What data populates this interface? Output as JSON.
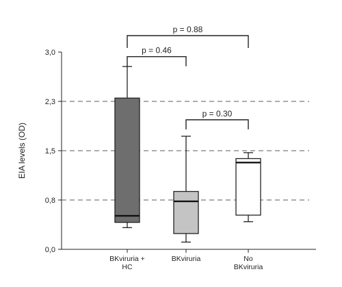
{
  "chart_data": {
    "type": "boxplot",
    "ylabel": "EIA levels (OD)",
    "ylim": [
      0.0,
      3.0
    ],
    "yticks": [
      {
        "value": 0.0,
        "label": "0,0"
      },
      {
        "value": 0.75,
        "label": "0,8"
      },
      {
        "value": 1.5,
        "label": "1,5"
      },
      {
        "value": 2.25,
        "label": "2,3"
      },
      {
        "value": 3.0,
        "label": "3,0"
      }
    ],
    "reference_lines": [
      0.75,
      1.5,
      2.25
    ],
    "grid": false,
    "categories": [
      {
        "lines": [
          "BKviruria +",
          "HC"
        ],
        "fill": "#6e6e6e",
        "whisker_low": 0.33,
        "q1": 0.41,
        "median": 0.51,
        "q3": 2.3,
        "whisker_high": 2.78
      },
      {
        "lines": [
          "BKviruria"
        ],
        "fill": "#c4c4c4",
        "whisker_low": 0.11,
        "q1": 0.24,
        "median": 0.73,
        "q3": 0.88,
        "whisker_high": 1.72
      },
      {
        "lines": [
          "No",
          "BKviruria"
        ],
        "fill": "#ffffff",
        "whisker_low": 0.42,
        "q1": 0.52,
        "median": 1.32,
        "q3": 1.38,
        "whisker_high": 1.47
      }
    ],
    "comparisons": [
      {
        "from": 0,
        "to": 2,
        "label": "p = 0.88",
        "level": 3.25
      },
      {
        "from": 0,
        "to": 1,
        "label": "p = 0.46",
        "level": 2.93
      },
      {
        "from": 1,
        "to": 2,
        "label": "p = 0.30",
        "level": 1.97
      }
    ]
  }
}
